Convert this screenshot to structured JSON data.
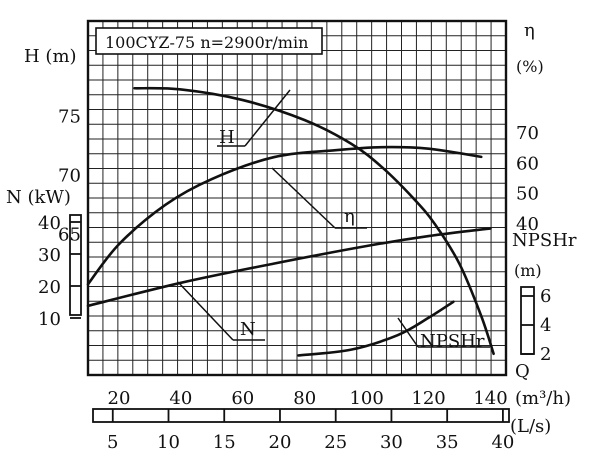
{
  "chart_data": {
    "type": "line",
    "title": "100CYZ-75 n=2900r/min",
    "x": {
      "label": "Q",
      "unit": "(m³/h)",
      "range": [
        10,
        145
      ],
      "ticks": [
        20,
        40,
        60,
        80,
        100,
        120,
        140
      ]
    },
    "x2": {
      "unit": "(L/s)",
      "ticks": [
        5,
        10,
        15,
        20,
        25,
        30,
        35,
        40
      ]
    },
    "axes": {
      "head": {
        "label": "H (m)",
        "range": [
          53,
          83
        ],
        "ticks": [
          65,
          70,
          75
        ]
      },
      "power": {
        "label": "N (kW)",
        "ticks": [
          10,
          20,
          30,
          40
        ]
      },
      "efficiency": {
        "label": "η",
        "unit": "(%)",
        "ticks": [
          40,
          50,
          60,
          70
        ]
      },
      "npsh": {
        "label": "NPSHr",
        "unit": "(m)",
        "ticks": [
          2,
          4,
          6
        ]
      }
    },
    "series": [
      {
        "name": "H",
        "label": "H",
        "points": [
          [
            25,
            77.3
          ],
          [
            40,
            77.2
          ],
          [
            60,
            76.3
          ],
          [
            80,
            74.6
          ],
          [
            95,
            72.6
          ],
          [
            105,
            70.6
          ],
          [
            115,
            68.0
          ],
          [
            122,
            65.8
          ],
          [
            130,
            62.4
          ],
          [
            137,
            58.0
          ],
          [
            141,
            54.8
          ]
        ]
      },
      {
        "name": "η",
        "label": "η",
        "points": [
          [
            10,
            19.8
          ],
          [
            20,
            33.0
          ],
          [
            35,
            46.0
          ],
          [
            50,
            54.5
          ],
          [
            70,
            61.7
          ],
          [
            90,
            64.0
          ],
          [
            105,
            65.0
          ],
          [
            120,
            64.5
          ],
          [
            137,
            61.8
          ]
        ]
      },
      {
        "name": "N",
        "label": "N",
        "points": [
          [
            10,
            13.8
          ],
          [
            40,
            21.0
          ],
          [
            70,
            27.0
          ],
          [
            100,
            32.5
          ],
          [
            120,
            35.6
          ],
          [
            140,
            38.0
          ]
        ]
      },
      {
        "name": "NPSHr",
        "label": "NPSHr",
        "points": [
          [
            78,
            1.9
          ],
          [
            95,
            2.3
          ],
          [
            110,
            3.3
          ],
          [
            120,
            4.5
          ],
          [
            128,
            5.6
          ]
        ]
      }
    ]
  }
}
